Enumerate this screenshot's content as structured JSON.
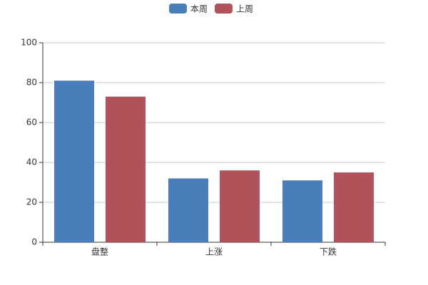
{
  "chart_data": {
    "type": "bar",
    "categories": [
      "盘整",
      "上涨",
      "下跌"
    ],
    "series": [
      {
        "name": "本周",
        "color": "#4a7ebb",
        "values": [
          81,
          32,
          31
        ]
      },
      {
        "name": "上周",
        "color": "#b0525a",
        "values": [
          73,
          36,
          35
        ]
      }
    ],
    "ylim": [
      0,
      100
    ],
    "yticks": [
      0,
      20,
      40,
      60,
      80,
      100
    ],
    "grid": true,
    "legend": "top"
  }
}
